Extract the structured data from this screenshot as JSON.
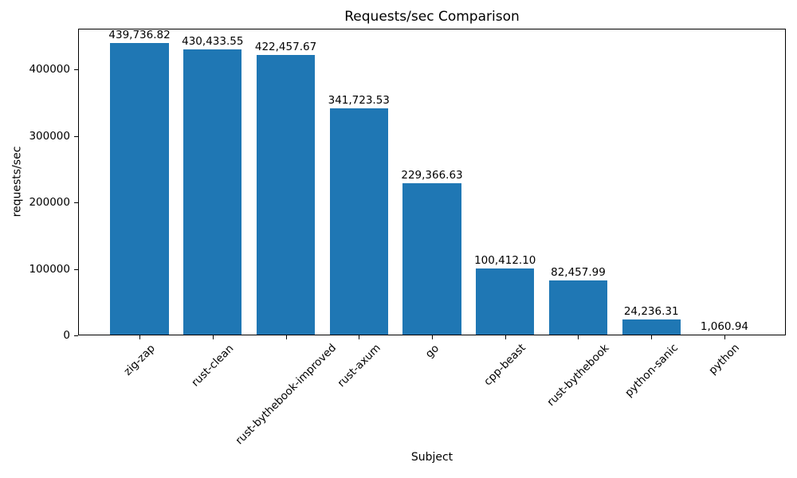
{
  "chart_data": {
    "type": "bar",
    "title": "Requests/sec Comparison",
    "xlabel": "Subject",
    "ylabel": "requests/sec",
    "categories": [
      "zig-zap",
      "rust-clean",
      "rust-bythebook-improved",
      "rust-axum",
      "go",
      "cpp-beast",
      "rust-bythebook",
      "python-sanic",
      "python"
    ],
    "values": [
      439736.82,
      430433.55,
      422457.67,
      341723.53,
      229366.63,
      100412.1,
      82457.99,
      24236.31,
      1060.94
    ],
    "value_labels": [
      "439,736.82",
      "430,433.55",
      "422,457.67",
      "341,723.53",
      "229,366.63",
      "100,412.10",
      "82,457.99",
      "24,236.31",
      "1,060.94"
    ],
    "yticks": [
      0,
      100000,
      200000,
      300000,
      400000
    ],
    "ytick_labels": [
      "0",
      "100000",
      "200000",
      "300000",
      "400000"
    ],
    "ylim": [
      0,
      461723.66
    ],
    "x_tick_rotation": 45,
    "bar_color": "#1f77b4",
    "text_color": "#000000",
    "background": "#ffffff",
    "grid": false
  }
}
